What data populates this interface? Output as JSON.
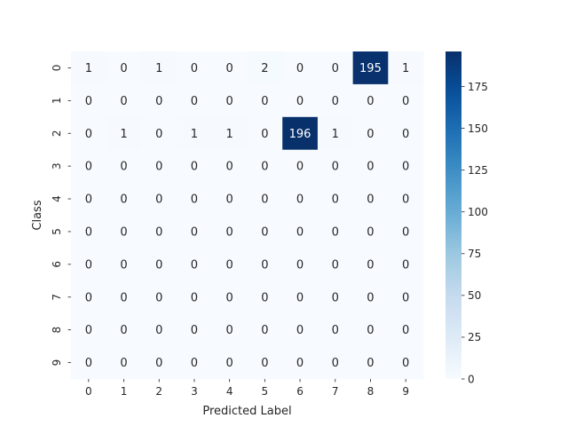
{
  "chart_data": {
    "type": "heatmap",
    "xlabel": "Predicted Label",
    "ylabel": "Class",
    "x_categories": [
      "0",
      "1",
      "2",
      "3",
      "4",
      "5",
      "6",
      "7",
      "8",
      "9"
    ],
    "y_categories": [
      "0",
      "1",
      "2",
      "3",
      "4",
      "5",
      "6",
      "7",
      "8",
      "9"
    ],
    "values": [
      [
        1,
        0,
        1,
        0,
        0,
        2,
        0,
        0,
        195,
        1
      ],
      [
        0,
        0,
        0,
        0,
        0,
        0,
        0,
        0,
        0,
        0
      ],
      [
        0,
        1,
        0,
        1,
        1,
        0,
        196,
        1,
        0,
        0
      ],
      [
        0,
        0,
        0,
        0,
        0,
        0,
        0,
        0,
        0,
        0
      ],
      [
        0,
        0,
        0,
        0,
        0,
        0,
        0,
        0,
        0,
        0
      ],
      [
        0,
        0,
        0,
        0,
        0,
        0,
        0,
        0,
        0,
        0
      ],
      [
        0,
        0,
        0,
        0,
        0,
        0,
        0,
        0,
        0,
        0
      ],
      [
        0,
        0,
        0,
        0,
        0,
        0,
        0,
        0,
        0,
        0
      ],
      [
        0,
        0,
        0,
        0,
        0,
        0,
        0,
        0,
        0,
        0
      ],
      [
        0,
        0,
        0,
        0,
        0,
        0,
        0,
        0,
        0,
        0
      ]
    ],
    "colormap": "Blues",
    "vmin": 0,
    "vmax": 196,
    "colorbar_ticks": [
      0,
      25,
      50,
      75,
      100,
      125,
      150,
      175
    ],
    "colorbar_tick_labels": [
      "0",
      "25",
      "50",
      "75",
      "100",
      "125",
      "150",
      "175"
    ],
    "annotated": true
  }
}
